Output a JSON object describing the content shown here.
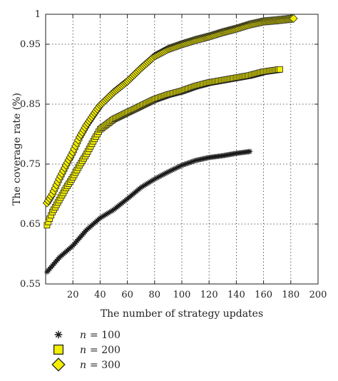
{
  "chart_data": {
    "type": "scatter",
    "title": "",
    "xlabel": "The number of strategy updates",
    "ylabel": "The coverage rate (%)",
    "xlim": [
      0,
      200
    ],
    "ylim": [
      0.55,
      1
    ],
    "xticks": [
      20,
      40,
      60,
      80,
      100,
      120,
      140,
      160,
      180,
      200
    ],
    "yticks": [
      0.55,
      0.65,
      0.75,
      0.85,
      0.95,
      1
    ],
    "ytick_labels": [
      "0.55",
      "0.65",
      "0.75",
      "0.85",
      "0.95",
      "1"
    ],
    "grid": true,
    "legend_position": "below-left",
    "series": [
      {
        "name": "n = 100",
        "name_var": "n",
        "name_value": "= 100",
        "marker": "asterisk",
        "color": "#1a1a1a",
        "x": [
          1,
          10,
          20,
          30,
          40,
          50,
          60,
          70,
          80,
          90,
          100,
          110,
          120,
          130,
          140,
          150
        ],
        "y": [
          0.57,
          0.594,
          0.614,
          0.64,
          0.66,
          0.674,
          0.692,
          0.711,
          0.725,
          0.737,
          0.748,
          0.756,
          0.761,
          0.764,
          0.768,
          0.771
        ]
      },
      {
        "name": "n = 200",
        "name_var": "n",
        "name_value": "= 200",
        "marker": "square",
        "color": "#f4ef00",
        "x": [
          1,
          5,
          10,
          15,
          20,
          25,
          30,
          35,
          40,
          50,
          60,
          70,
          80,
          90,
          100,
          110,
          120,
          130,
          140,
          150,
          160,
          172
        ],
        "y": [
          0.648,
          0.67,
          0.69,
          0.71,
          0.728,
          0.748,
          0.767,
          0.788,
          0.808,
          0.825,
          0.836,
          0.847,
          0.858,
          0.866,
          0.872,
          0.88,
          0.886,
          0.89,
          0.894,
          0.898,
          0.904,
          0.908
        ]
      },
      {
        "name": "n = 300",
        "name_var": "n",
        "name_value": "= 300",
        "marker": "diamond",
        "color": "#f4ef00",
        "x": [
          1,
          5,
          10,
          15,
          20,
          25,
          30,
          35,
          40,
          50,
          60,
          70,
          80,
          90,
          100,
          110,
          120,
          130,
          140,
          150,
          160,
          170,
          182
        ],
        "y": [
          0.685,
          0.7,
          0.725,
          0.748,
          0.77,
          0.795,
          0.815,
          0.832,
          0.848,
          0.87,
          0.888,
          0.91,
          0.93,
          0.942,
          0.95,
          0.957,
          0.963,
          0.97,
          0.976,
          0.983,
          0.988,
          0.99,
          0.993
        ]
      }
    ]
  }
}
